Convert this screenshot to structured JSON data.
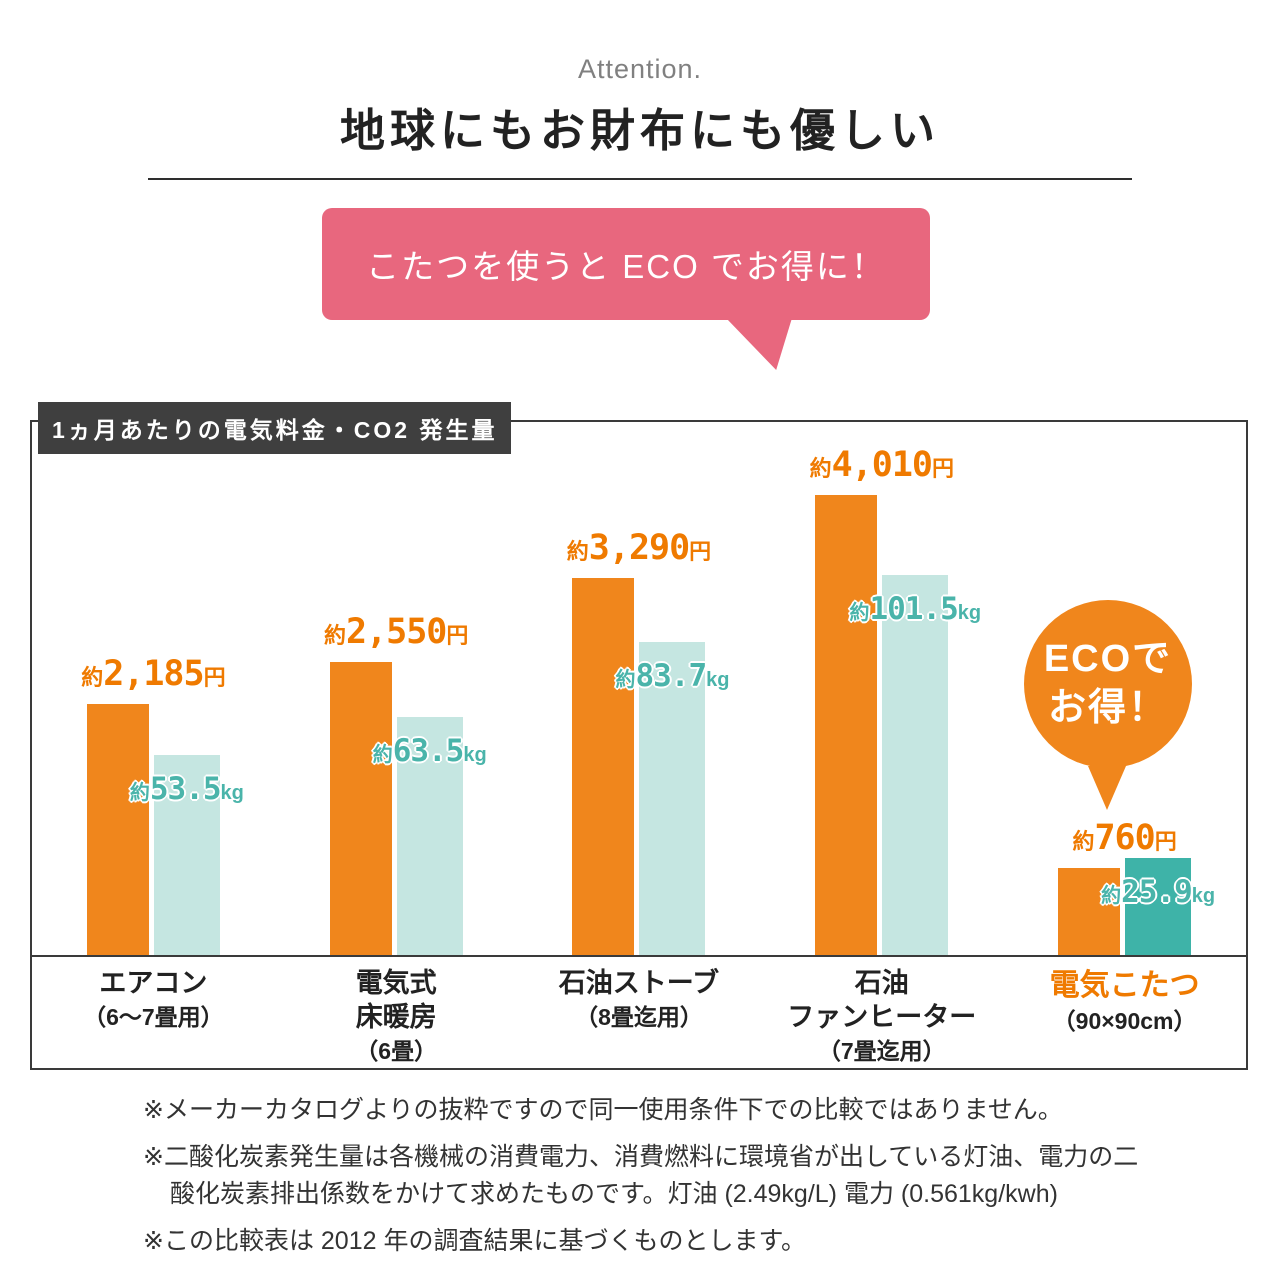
{
  "header": {
    "attention": "Attention.",
    "title": "地球にもお財布にも優しい"
  },
  "bubble": {
    "text": "こたつを使うと ECO でお得に！"
  },
  "chart": {
    "box_label": "1ヵ月あたりの電気料金・CO2 発生量",
    "eco_badge": {
      "line1": "ECOで",
      "line2": "お得！"
    }
  },
  "chart_data": {
    "type": "bar",
    "title": "1ヵ月あたりの電気料金・CO2発生量",
    "grid": false,
    "legend_position": "none",
    "value_axis": "hidden (values shown as data labels)",
    "categories": [
      {
        "name_lines": [
          "エアコン"
        ],
        "sub": "（6〜7畳用）",
        "highlight": false
      },
      {
        "name_lines": [
          "電気式",
          "床暖房"
        ],
        "sub": "（6畳）",
        "highlight": false
      },
      {
        "name_lines": [
          "石油ストーブ"
        ],
        "sub": "（8畳迄用）",
        "highlight": false
      },
      {
        "name_lines": [
          "石油",
          "ファンヒーター"
        ],
        "sub": "（7畳迄用）",
        "highlight": false
      },
      {
        "name_lines": [
          "電気こたつ"
        ],
        "sub": "（90×90cm）",
        "highlight": true
      }
    ],
    "series": [
      {
        "name": "1ヵ月あたりの電気料金",
        "prefix": "約",
        "unit": "円",
        "values": [
          2185,
          2550,
          3290,
          4010,
          760
        ],
        "value_labels": [
          "2,185",
          "2,550",
          "3,290",
          "4,010",
          "760"
        ],
        "color": "#f0861c"
      },
      {
        "name": "1ヵ月あたりのCO2発生量",
        "prefix": "約",
        "unit": "kg",
        "values": [
          53.5,
          63.5,
          83.7,
          101.5,
          25.9
        ],
        "value_labels": [
          "53.5",
          "63.5",
          "83.7",
          "101.5",
          "25.9"
        ],
        "color": "#c5e6e1",
        "highlight_color": "#3eb3a8"
      }
    ]
  },
  "footnotes": [
    "※メーカーカタログよりの抜粋ですので同一使用条件下での比較ではありません。",
    "※二酸化炭素発生量は各機械の消費電力、消費燃料に環境省が出している灯油、電力の二酸化炭素排出係数をかけて求めたものです。灯油 (2.49kg/L) 電力 (0.561kg/kwh)",
    "※この比較表は 2012 年の調査結果に基づくものとします。"
  ],
  "colors": {
    "orange": "#f0861c",
    "orange_text": "#ef7a00",
    "teal_light": "#c5e6e1",
    "teal_dark": "#3eb3a8",
    "teal_text": "#4ab4aa",
    "pink": "#e8677e",
    "label_bg": "#3f3f3f"
  }
}
